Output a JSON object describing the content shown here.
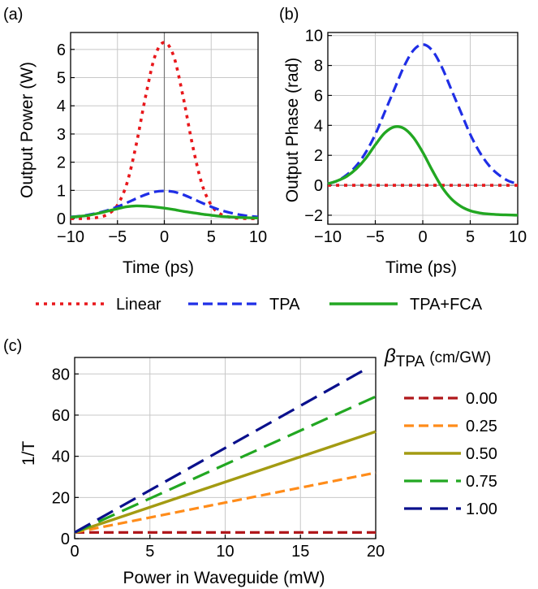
{
  "chart_data": [
    {
      "panel_label": "(a)",
      "type": "line",
      "xlabel": "Time (ps)",
      "ylabel": "Output Power (W)",
      "xlim": [
        -10,
        10
      ],
      "ylim": [
        -0.2,
        6.6
      ],
      "xticks": [
        -10,
        -5,
        0,
        5,
        10
      ],
      "yticks": [
        0,
        1,
        2,
        3,
        4,
        5,
        6
      ],
      "grid": true,
      "x": [
        -10,
        -9,
        -8,
        -7,
        -6,
        -5,
        -4,
        -3,
        -2,
        -1,
        0,
        1,
        2,
        3,
        4,
        5,
        6,
        7,
        8,
        9,
        10
      ],
      "series": [
        {
          "name": "Linear",
          "color": "#e8171b",
          "dash": "dotted",
          "values": [
            0.0,
            0.0,
            0.01,
            0.05,
            0.16,
            0.48,
            1.24,
            2.62,
            4.33,
            5.76,
            6.25,
            5.76,
            4.33,
            2.62,
            1.24,
            0.48,
            0.16,
            0.05,
            0.01,
            0.0,
            0.0
          ]
        },
        {
          "name": "TPA",
          "color": "#1f2ee6",
          "dash": "dashed",
          "values": [
            0.06,
            0.09,
            0.14,
            0.21,
            0.3,
            0.42,
            0.56,
            0.71,
            0.85,
            0.95,
            0.98,
            0.95,
            0.85,
            0.71,
            0.56,
            0.42,
            0.3,
            0.21,
            0.14,
            0.09,
            0.06
          ]
        },
        {
          "name": "TPA+FCA",
          "color": "#22a722",
          "dash": "solid",
          "values": [
            0.05,
            0.08,
            0.12,
            0.19,
            0.27,
            0.35,
            0.42,
            0.45,
            0.44,
            0.41,
            0.37,
            0.32,
            0.26,
            0.21,
            0.16,
            0.12,
            0.08,
            0.06,
            0.04,
            0.03,
            0.02
          ]
        }
      ]
    },
    {
      "panel_label": "(b)",
      "type": "line",
      "xlabel": "Time (ps)",
      "ylabel": "Output Phase (rad)",
      "xlim": [
        -10,
        10
      ],
      "ylim": [
        -2.6,
        10.2
      ],
      "xticks": [
        -10,
        -5,
        0,
        5,
        10
      ],
      "yticks": [
        -2,
        0,
        2,
        4,
        6,
        8,
        10
      ],
      "grid": true,
      "x": [
        -10,
        -9,
        -8,
        -7,
        -6,
        -5,
        -4,
        -3,
        -2,
        -1,
        0,
        1,
        2,
        3,
        4,
        5,
        6,
        7,
        8,
        9,
        10
      ],
      "series": [
        {
          "name": "Linear",
          "color": "#e8171b",
          "dash": "dotted",
          "values": [
            0,
            0,
            0,
            0,
            0,
            0,
            0,
            0,
            0,
            0,
            0,
            0,
            0,
            0,
            0,
            0,
            0,
            0,
            0,
            0,
            0
          ]
        },
        {
          "name": "TPA",
          "color": "#1f2ee6",
          "dash": "dashed",
          "values": [
            0.1,
            0.3,
            0.7,
            1.3,
            2.2,
            3.4,
            4.9,
            6.4,
            7.9,
            9.0,
            9.4,
            9.0,
            7.9,
            6.4,
            4.9,
            3.4,
            2.2,
            1.3,
            0.7,
            0.3,
            0.1
          ]
        },
        {
          "name": "TPA+FCA",
          "color": "#22a722",
          "dash": "solid",
          "values": [
            0.1,
            0.3,
            0.6,
            1.1,
            1.8,
            2.7,
            3.5,
            3.9,
            3.8,
            3.2,
            2.2,
            1.0,
            -0.1,
            -0.9,
            -1.4,
            -1.7,
            -1.85,
            -1.92,
            -1.96,
            -1.98,
            -2.0
          ]
        }
      ]
    },
    {
      "panel_label": "(c)",
      "type": "line",
      "xlabel": "Power in Waveguide (mW)",
      "ylabel": "1/T",
      "xlim": [
        0,
        20
      ],
      "ylim": [
        0,
        88
      ],
      "xticks": [
        0,
        5,
        10,
        15,
        20
      ],
      "yticks": [
        0,
        20,
        40,
        60,
        80
      ],
      "grid": true,
      "legend_title_symbol": "β",
      "legend_title_sub": "TPA",
      "legend_title_unit": "(cm/GW)",
      "legend_position": "right",
      "x": [
        0,
        20
      ],
      "series": [
        {
          "name": "0.00",
          "color": "#b0171b",
          "dash": "dashed",
          "values": [
            3,
            3
          ]
        },
        {
          "name": "0.25",
          "color": "#ff8c1a",
          "dash": "dashed",
          "values": [
            3,
            32
          ]
        },
        {
          "name": "0.50",
          "color": "#a39b12",
          "dash": "solid",
          "values": [
            3,
            52
          ]
        },
        {
          "name": "0.75",
          "color": "#22a722",
          "dash": "longdash",
          "values": [
            3,
            69
          ]
        },
        {
          "name": "1.00",
          "color": "#0a108c",
          "dash": "longdash",
          "values": [
            3,
            83
          ],
          "x_end": 19.5
        }
      ]
    }
  ],
  "legend_top": {
    "items": [
      {
        "name": "Linear",
        "color": "#e8171b",
        "dash": "dotted"
      },
      {
        "name": "TPA",
        "color": "#1f2ee6",
        "dash": "dashed"
      },
      {
        "name": "TPA+FCA",
        "color": "#22a722",
        "dash": "solid"
      }
    ]
  }
}
